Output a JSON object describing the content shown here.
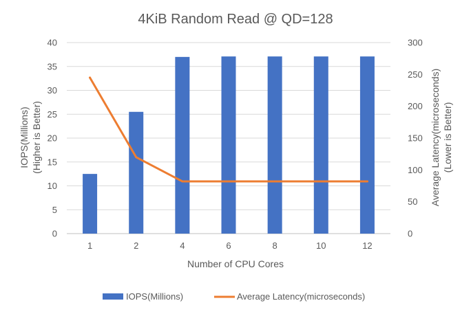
{
  "chart_data": {
    "type": "bar",
    "title": "4KiB Random Read @ QD=128",
    "xlabel": "Number of CPU Cores",
    "ylabel_left": [
      "IOPS(Millions)",
      "(Higher is Better)"
    ],
    "ylabel_right": [
      "Average Latency(microseconds)",
      "(Lower is Better)"
    ],
    "categories": [
      "1",
      "2",
      "4",
      "6",
      "8",
      "10",
      "12"
    ],
    "ylim_left": [
      0,
      40
    ],
    "yticks_left": [
      0,
      5,
      10,
      15,
      20,
      25,
      30,
      35,
      40
    ],
    "ylim_right": [
      0,
      300
    ],
    "yticks_right": [
      0,
      50,
      100,
      150,
      200,
      250,
      300
    ],
    "grid": true,
    "legend_position": "bottom",
    "series": [
      {
        "name": "IOPS(Millions)",
        "type": "bar",
        "axis": "left",
        "color": "#4472C4",
        "values": [
          12.5,
          25.5,
          37.0,
          37.1,
          37.1,
          37.1,
          37.1
        ]
      },
      {
        "name": "Average Latency(microseconds)",
        "type": "line",
        "axis": "right",
        "color": "#ED7D31",
        "values": [
          245,
          120,
          82,
          82,
          82,
          82,
          82
        ]
      }
    ]
  }
}
